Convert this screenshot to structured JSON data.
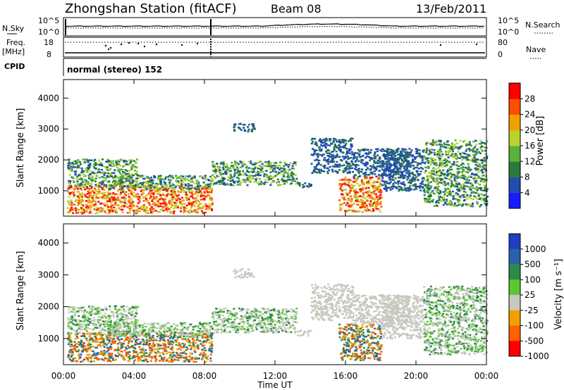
{
  "header": {
    "station": "Zhongshan Station (fitACF)",
    "beam": "Beam 08",
    "date": "13/Feb/2011"
  },
  "noise_panel": {
    "left_label": "N.Sky",
    "right_label": "N.Search",
    "left_ticks": [
      "10^5",
      "10^0"
    ],
    "right_ticks": [
      "10^5",
      "10^0"
    ]
  },
  "freq_panel": {
    "left_label_1": "Freq.",
    "left_label_2": "[MHz]",
    "right_label": "Nave",
    "left_ticks": [
      "18",
      "8"
    ],
    "right_ticks": [
      "80",
      "0"
    ],
    "cpid_label": "CPID"
  },
  "cpid_text": "normal (stereo) 152",
  "chart_data": [
    {
      "type": "heatmap",
      "name": "Power",
      "ylabel": "Slant Range [km]",
      "xlabel": "Time UT",
      "ylim": [
        180,
        4600
      ],
      "xlim": [
        "00:00",
        "24:00"
      ],
      "yticks": [
        "1000",
        "2000",
        "3000",
        "4000"
      ],
      "xticks": [
        "00:00",
        "04:00",
        "08:00",
        "12:00",
        "16:00",
        "20:00",
        "00:00"
      ],
      "colorbar": {
        "label": "Power [dB]",
        "ticks": [
          "4",
          "8",
          "12",
          "16",
          "20",
          "24",
          "28"
        ],
        "colors": [
          "#1a1aff",
          "#1f4db0",
          "#2a7a3a",
          "#56b33a",
          "#b8d22e",
          "#f0a000",
          "#ff4d00",
          "#ff0000"
        ]
      }
    },
    {
      "type": "heatmap",
      "name": "Velocity",
      "ylabel": "Slant Range [km]",
      "xlabel": "Time UT",
      "ylim": [
        180,
        4600
      ],
      "xlim": [
        "00:00",
        "24:00"
      ],
      "yticks": [
        "1000",
        "2000",
        "3000",
        "4000"
      ],
      "xticks": [
        "00:00",
        "04:00",
        "08:00",
        "12:00",
        "16:00",
        "20:00",
        "00:00"
      ],
      "colorbar": {
        "label": "Velocity [m s⁻¹]",
        "ticks": [
          "1000",
          "500",
          "100",
          "25",
          "-25",
          "-100",
          "-500",
          "-1000"
        ],
        "colors": [
          "#1f3fc0",
          "#2a62a8",
          "#2e8a4a",
          "#5cc830",
          "#c8c8c0",
          "#f0a000",
          "#ff6000",
          "#ff0000"
        ]
      }
    }
  ],
  "x_axis_label": "Time UT"
}
